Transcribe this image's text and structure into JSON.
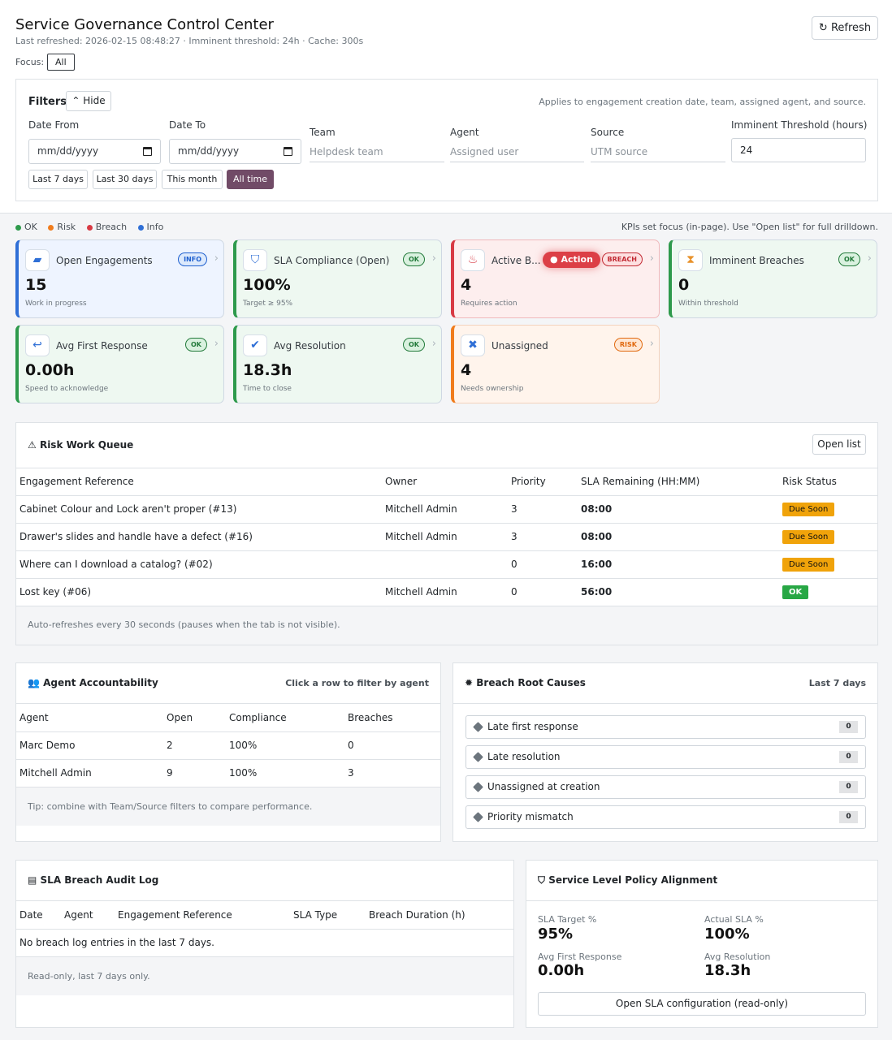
{
  "header": {
    "title": "Service Governance Control Center",
    "subtitle": "Last refreshed: 2026-02-15 08:48:27 · Imminent threshold: 24h · Cache: 300s",
    "focus_label": "Focus:",
    "focus_value": "All",
    "refresh_label": "Refresh"
  },
  "filters": {
    "title": "Filters",
    "hide_label": "Hide",
    "note": "Applies to engagement creation date, team, assigned agent, and source.",
    "date_from_label": "Date From",
    "date_from_value": "mm/dd/yyyy",
    "date_to_label": "Date To",
    "date_to_value": "mm/dd/yyyy",
    "team_label": "Team",
    "team_placeholder": "Helpdesk team",
    "agent_label": "Agent",
    "agent_placeholder": "Assigned user",
    "source_label": "Source",
    "source_placeholder": "UTM source",
    "threshold_label": "Imminent Threshold (hours)",
    "threshold_value": "24",
    "quick": [
      "Last 7 days",
      "Last 30 days",
      "This month",
      "All time"
    ],
    "active_quick": "All time"
  },
  "legend": {
    "items": [
      {
        "label": "OK",
        "color": "#2e9a4c"
      },
      {
        "label": "Risk",
        "color": "#f07c1c"
      },
      {
        "label": "Breach",
        "color": "#d83a44"
      },
      {
        "label": "Info",
        "color": "#2f6fd6"
      }
    ],
    "note": "KPIs set focus (in-page). Use \"Open list\" for full drilldown."
  },
  "kpis": [
    {
      "title": "Open Engagements",
      "value": "15",
      "sub": "Work in progress",
      "badge": "INFO",
      "icon": "folder-open-icon"
    },
    {
      "title": "SLA Compliance (Open)",
      "value": "100%",
      "sub": "Target ≥ 95%",
      "badge": "OK",
      "icon": "shield-icon"
    },
    {
      "title": "Active B...",
      "value": "4",
      "sub": "Requires action",
      "badge": "BREACH",
      "icon": "fire-icon",
      "action": "Action"
    },
    {
      "title": "Imminent Breaches",
      "value": "0",
      "sub": "Within threshold",
      "badge": "OK",
      "icon": "hourglass-icon"
    },
    {
      "title": "Avg First Response",
      "value": "0.00h",
      "sub": "Speed to acknowledge",
      "badge": "OK",
      "icon": "reply-icon"
    },
    {
      "title": "Avg Resolution",
      "value": "18.3h",
      "sub": "Time to close",
      "badge": "OK",
      "icon": "check-circle-icon"
    },
    {
      "title": "Unassigned",
      "value": "4",
      "sub": "Needs ownership",
      "badge": "RISK",
      "icon": "user-x-icon"
    }
  ],
  "risk_queue": {
    "title": "Risk Work Queue",
    "open_list": "Open list",
    "headers": [
      "Engagement Reference",
      "Owner",
      "Priority",
      "SLA Remaining (HH:MM)",
      "Risk Status"
    ],
    "rows": [
      {
        "ref": "Cabinet Colour and Lock aren't proper (#13)",
        "owner": "Mitchell Admin",
        "priority": "3",
        "remaining": "08:00",
        "status": "Due Soon"
      },
      {
        "ref": "Drawer's slides and handle have a defect (#16)",
        "owner": "Mitchell Admin",
        "priority": "3",
        "remaining": "08:00",
        "status": "Due Soon"
      },
      {
        "ref": "Where can I download a catalog? (#02)",
        "owner": "",
        "priority": "0",
        "remaining": "16:00",
        "status": "Due Soon"
      },
      {
        "ref": "Lost key (#06)",
        "owner": "Mitchell Admin",
        "priority": "0",
        "remaining": "56:00",
        "status": "OK"
      }
    ],
    "footer": "Auto-refreshes every 30 seconds (pauses when the tab is not visible)."
  },
  "agents": {
    "title": "Agent Accountability",
    "hint": "Click a row to filter by agent",
    "headers": [
      "Agent",
      "Open",
      "Compliance",
      "Breaches"
    ],
    "rows": [
      {
        "agent": "Marc Demo",
        "open": "2",
        "compliance": "100%",
        "breaches": "0"
      },
      {
        "agent": "Mitchell Admin",
        "open": "9",
        "compliance": "100%",
        "breaches": "3"
      }
    ],
    "footer": "Tip: combine with Team/Source filters to compare performance."
  },
  "causes": {
    "title": "Breach Root Causes",
    "range": "Last 7 days",
    "items": [
      {
        "label": "Late first response",
        "count": "0"
      },
      {
        "label": "Late resolution",
        "count": "0"
      },
      {
        "label": "Unassigned at creation",
        "count": "0"
      },
      {
        "label": "Priority mismatch",
        "count": "0"
      }
    ]
  },
  "audit": {
    "title": "SLA Breach Audit Log",
    "headers": [
      "Date",
      "Agent",
      "Engagement Reference",
      "SLA Type",
      "Breach Duration (h)"
    ],
    "empty": "No breach log entries in the last 7 days.",
    "footer": "Read-only, last 7 days only."
  },
  "alignment": {
    "title": "Service Level Policy Alignment",
    "target_label": "SLA Target %",
    "target_value": "95%",
    "actual_label": "Actual SLA %",
    "actual_value": "100%",
    "afr_label": "Avg First Response",
    "afr_value": "0.00h",
    "ar_label": "Avg Resolution",
    "ar_value": "18.3h",
    "config_button": "Open SLA configuration (read-only)"
  }
}
